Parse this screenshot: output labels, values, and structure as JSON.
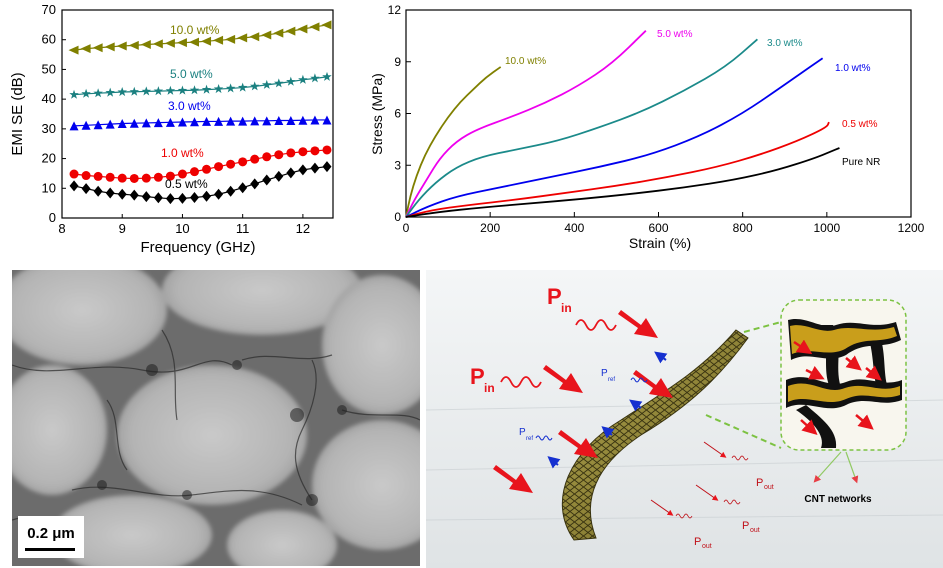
{
  "chart_data": [
    {
      "type": "scatter",
      "xlabel": "Frequency (GHz)",
      "ylabel": "EMI SE (dB)",
      "xlim": [
        8.0,
        12.5
      ],
      "ylim": [
        0,
        70
      ],
      "xticks": [
        "8",
        "9",
        "10",
        "11",
        "12"
      ],
      "yticks": [
        "0",
        "10",
        "20",
        "30",
        "40",
        "50",
        "60",
        "70"
      ],
      "x": [
        8.2,
        8.4,
        8.6,
        8.8,
        9.0,
        9.2,
        9.4,
        9.6,
        9.8,
        10.0,
        10.2,
        10.4,
        10.6,
        10.8,
        11.0,
        11.2,
        11.4,
        11.6,
        11.8,
        12.0,
        12.2,
        12.4
      ],
      "series": [
        {
          "name": "10.0 wt%",
          "color": "#808000",
          "marker": "triangle-left",
          "values": [
            56.5,
            57.0,
            57.3,
            57.6,
            57.9,
            58.1,
            58.4,
            58.6,
            58.8,
            59.0,
            59.2,
            59.5,
            59.8,
            60.1,
            60.6,
            61.0,
            61.6,
            62.2,
            62.9,
            63.6,
            64.3,
            65.0
          ]
        },
        {
          "name": "5.0 wt%",
          "color": "#1b8080",
          "marker": "star",
          "values": [
            41.5,
            41.8,
            42.0,
            42.2,
            42.4,
            42.5,
            42.6,
            42.7,
            42.8,
            42.9,
            43.0,
            43.2,
            43.4,
            43.6,
            43.9,
            44.3,
            44.8,
            45.3,
            45.9,
            46.5,
            47.0,
            47.5
          ]
        },
        {
          "name": "3.0 wt%",
          "color": "#0000ee",
          "marker": "triangle-up",
          "values": [
            31.0,
            31.2,
            31.4,
            31.6,
            31.8,
            31.9,
            32.0,
            32.1,
            32.2,
            32.3,
            32.4,
            32.5,
            32.5,
            32.6,
            32.6,
            32.7,
            32.7,
            32.8,
            32.8,
            32.9,
            33.0,
            33.0
          ]
        },
        {
          "name": "1.0 wt%",
          "color": "#ee0000",
          "marker": "circle",
          "values": [
            14.8,
            14.3,
            14.0,
            13.7,
            13.4,
            13.3,
            13.4,
            13.7,
            14.1,
            14.8,
            15.6,
            16.4,
            17.3,
            18.1,
            18.9,
            19.8,
            20.6,
            21.3,
            21.9,
            22.3,
            22.6,
            22.9
          ]
        },
        {
          "name": "0.5 wt%",
          "color": "#000000",
          "marker": "diamond",
          "values": [
            10.8,
            9.9,
            9.0,
            8.4,
            8.0,
            7.7,
            7.2,
            6.8,
            6.5,
            6.6,
            6.9,
            7.3,
            8.0,
            9.0,
            10.2,
            11.5,
            12.8,
            14.0,
            15.2,
            16.2,
            16.8,
            17.3
          ]
        }
      ],
      "annotations": [
        "10.0 wt%",
        "5.0 wt%",
        "3.0 wt%",
        "1.0 wt%",
        "0.5 wt%"
      ]
    },
    {
      "type": "line",
      "xlabel": "Strain (%)",
      "ylabel": "Stress (MPa)",
      "xlim": [
        0,
        1200
      ],
      "ylim": [
        0,
        12
      ],
      "xticks": [
        "0",
        "200",
        "400",
        "600",
        "800",
        "1000",
        "1200"
      ],
      "yticks": [
        "0",
        "3",
        "6",
        "9",
        "12"
      ],
      "series": [
        {
          "name": "10.0 wt%",
          "color": "#808000",
          "points": [
            [
              0,
              0
            ],
            [
              10,
              1.2
            ],
            [
              25,
              2.4
            ],
            [
              45,
              3.6
            ],
            [
              70,
              4.7
            ],
            [
              100,
              5.8
            ],
            [
              130,
              6.7
            ],
            [
              160,
              7.4
            ],
            [
              190,
              8.1
            ],
            [
              225,
              8.7
            ]
          ]
        },
        {
          "name": "5.0 wt%",
          "color": "#ee00ee",
          "points": [
            [
              0,
              0
            ],
            [
              20,
              1.0
            ],
            [
              50,
              2.2
            ],
            [
              80,
              3.4
            ],
            [
              120,
              4.4
            ],
            [
              170,
              5.1
            ],
            [
              250,
              5.8
            ],
            [
              330,
              6.6
            ],
            [
              410,
              7.6
            ],
            [
              490,
              8.9
            ],
            [
              570,
              10.8
            ]
          ]
        },
        {
          "name": "3.0 wt%",
          "color": "#1b8a8a",
          "points": [
            [
              0,
              0
            ],
            [
              30,
              1.0
            ],
            [
              70,
              2.0
            ],
            [
              120,
              2.9
            ],
            [
              180,
              3.5
            ],
            [
              260,
              3.9
            ],
            [
              360,
              4.4
            ],
            [
              460,
              5.2
            ],
            [
              560,
              6.1
            ],
            [
              660,
              7.3
            ],
            [
              760,
              8.7
            ],
            [
              835,
              10.3
            ]
          ]
        },
        {
          "name": "1.0 wt%",
          "color": "#0000ee",
          "points": [
            [
              0,
              0
            ],
            [
              50,
              0.6
            ],
            [
              120,
              1.2
            ],
            [
              220,
              1.7
            ],
            [
              340,
              2.3
            ],
            [
              460,
              2.9
            ],
            [
              580,
              3.6
            ],
            [
              700,
              4.7
            ],
            [
              800,
              6.0
            ],
            [
              890,
              7.5
            ],
            [
              960,
              8.7
            ],
            [
              990,
              9.2
            ]
          ]
        },
        {
          "name": "0.5 wt%",
          "color": "#ee0000",
          "points": [
            [
              0,
              0
            ],
            [
              60,
              0.4
            ],
            [
              150,
              0.7
            ],
            [
              260,
              1.0
            ],
            [
              380,
              1.4
            ],
            [
              500,
              1.8
            ],
            [
              620,
              2.3
            ],
            [
              740,
              2.9
            ],
            [
              840,
              3.6
            ],
            [
              930,
              4.4
            ],
            [
              1000,
              5.2
            ],
            [
              1005,
              5.5
            ]
          ]
        },
        {
          "name": "Pure NR",
          "color": "#000000",
          "points": [
            [
              0,
              0
            ],
            [
              80,
              0.3
            ],
            [
              180,
              0.55
            ],
            [
              300,
              0.8
            ],
            [
              420,
              1.05
            ],
            [
              540,
              1.35
            ],
            [
              660,
              1.7
            ],
            [
              780,
              2.15
            ],
            [
              880,
              2.7
            ],
            [
              970,
              3.4
            ],
            [
              1010,
              3.8
            ],
            [
              1030,
              4.0
            ]
          ]
        }
      ],
      "annotations": [
        "10.0 wt%",
        "5.0 wt%",
        "3.0 wt%",
        "1.0 wt%",
        "0.5 wt%",
        "Pure NR"
      ]
    }
  ],
  "tem_image": {
    "scale_bar_label": "0.2 μm"
  },
  "schematic": {
    "labels": {
      "p_in_main": "P",
      "p_in_sub": "in",
      "p_ref_main": "P",
      "p_ref_sub": "ref",
      "p_out_main": "P",
      "p_out_sub": "out",
      "cnt_networks": "CNT networks"
    },
    "colors": {
      "incident": "#e8141c",
      "reflected": "#1530d0",
      "film": "#8a7d2a",
      "cnt": "#d4a61c"
    }
  }
}
